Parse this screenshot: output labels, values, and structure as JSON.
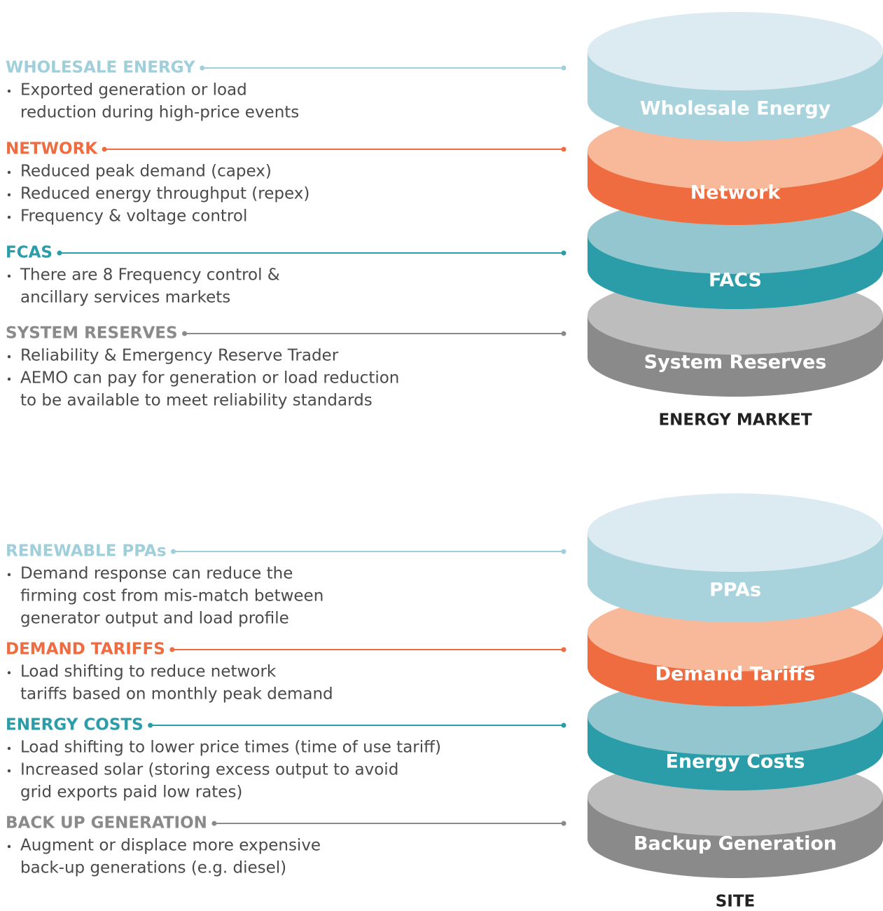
{
  "sections": [
    {
      "items": [
        {
          "heading": "WHOLESALE ENERGY",
          "color": "#9fcfdb",
          "bullets": [
            [
              "Exported generation or load",
              "reduction during high-price events"
            ]
          ]
        },
        {
          "heading": "NETWORK",
          "color": "#ee6c3f",
          "bullets": [
            [
              "Reduced peak demand (capex)"
            ],
            [
              "Reduced energy throughput (repex)"
            ],
            [
              "Frequency & voltage control"
            ]
          ]
        },
        {
          "heading": "FCAS",
          "color": "#2a9da9",
          "bullets": [
            [
              "There are 8 Frequency control &",
              "ancillary services markets"
            ]
          ]
        },
        {
          "heading": "SYSTEM RESERVES",
          "color": "#8a8a8a",
          "bullets": [
            [
              "Reliability & Emergency Reserve Trader"
            ],
            [
              "AEMO can pay for generation or load reduction",
              "to be available to meet reliability standards"
            ]
          ]
        }
      ],
      "stack": {
        "caption": "ENERGY MARKET",
        "layers": [
          {
            "label": "Wholesale Energy",
            "side": "#a9d3dc",
            "top": "#dcebf1"
          },
          {
            "label": "Network",
            "side": "#ee6c3f",
            "top": "#f7b99a"
          },
          {
            "label": "FACS",
            "side": "#2a9da9",
            "top": "#93c6ce"
          },
          {
            "label": "System Reserves",
            "side": "#8a8a8a",
            "top": "#bdbdbd"
          }
        ]
      }
    },
    {
      "items": [
        {
          "heading": "RENEWABLE PPAs",
          "color": "#9fcfdb",
          "bullets": [
            [
              "Demand response can reduce the",
              "firming cost from mis-match between",
              "generator output and load profile"
            ]
          ]
        },
        {
          "heading": "DEMAND TARIFFS",
          "color": "#ee6c3f",
          "bullets": [
            [
              "Load shifting to reduce network",
              "tariffs based on monthly peak demand"
            ]
          ]
        },
        {
          "heading": "ENERGY COSTS",
          "color": "#2a9da9",
          "bullets": [
            [
              "Load shifting to lower price times (time of use tariff)"
            ],
            [
              "Increased solar (storing excess output to avoid",
              "grid exports paid low rates)"
            ]
          ]
        },
        {
          "heading": "BACK UP GENERATION",
          "color": "#8a8a8a",
          "bullets": [
            [
              "Augment or displace more expensive",
              "back-up generations (e.g. diesel)"
            ]
          ]
        }
      ],
      "stack": {
        "caption": "SITE",
        "layers": [
          {
            "label": "PPAs",
            "side": "#a9d3dc",
            "top": "#dcebf1"
          },
          {
            "label": "Demand Tariffs",
            "side": "#ee6c3f",
            "top": "#f7b99a"
          },
          {
            "label": "Energy Costs",
            "side": "#2a9da9",
            "top": "#93c6ce"
          },
          {
            "label": "Backup Generation",
            "side": "#8a8a8a",
            "top": "#bdbdbd"
          }
        ]
      }
    }
  ]
}
